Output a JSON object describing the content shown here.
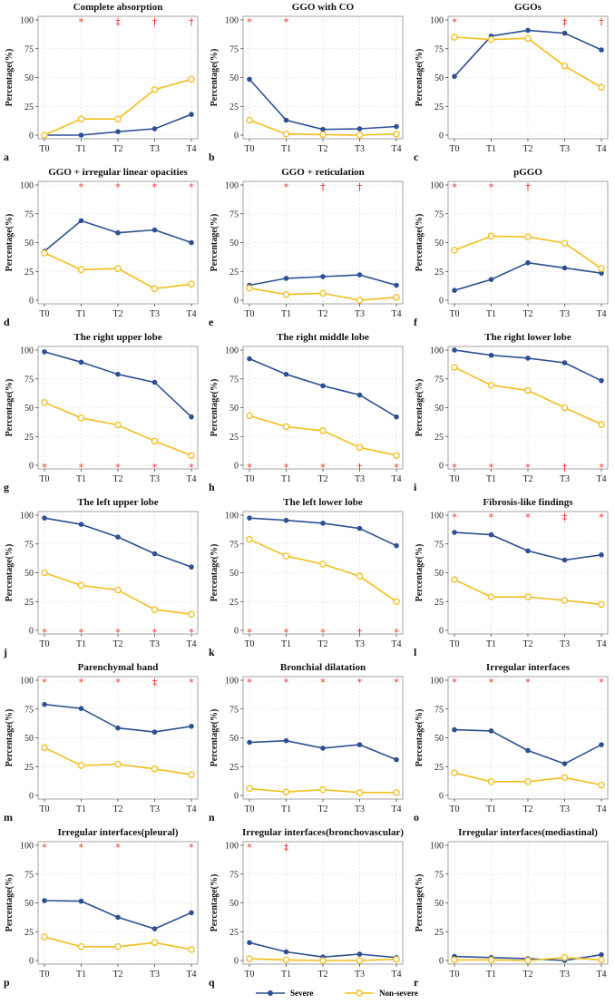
{
  "chart_data": [
    {
      "type": "line",
      "letter": "a",
      "title": "Complete absorption",
      "ylabel": "Percentage(%)",
      "ylim": [
        0,
        100
      ],
      "yticks": [
        0,
        25,
        50,
        75,
        100
      ],
      "categories": [
        "T0",
        "T1",
        "T2",
        "T3",
        "T4"
      ],
      "series": [
        {
          "name": "Severe",
          "values": [
            0,
            0,
            3,
            5.5,
            18
          ]
        },
        {
          "name": "Non-severe",
          "values": [
            0,
            14,
            14,
            39.5,
            48.5
          ]
        }
      ],
      "annotations": [
        {
          "x": "T1",
          "symbol": "*"
        },
        {
          "x": "T2",
          "symbol": "‡"
        },
        {
          "x": "T3",
          "symbol": "†"
        },
        {
          "x": "T4",
          "symbol": "†"
        }
      ],
      "annotation_position": "top"
    },
    {
      "type": "line",
      "letter": "b",
      "title": "GGO with CO",
      "ylabel": "Percentage(%)",
      "ylim": [
        0,
        100
      ],
      "yticks": [
        0,
        25,
        50,
        75,
        100
      ],
      "categories": [
        "T0",
        "T1",
        "T2",
        "T3",
        "T4"
      ],
      "series": [
        {
          "name": "Severe",
          "values": [
            48.5,
            13,
            5,
            5.5,
            7.5
          ]
        },
        {
          "name": "Non-severe",
          "values": [
            13,
            1,
            0.5,
            0,
            1
          ]
        }
      ],
      "annotations": [
        {
          "x": "T0",
          "symbol": "*"
        },
        {
          "x": "T1",
          "symbol": "*"
        }
      ],
      "annotation_position": "top"
    },
    {
      "type": "line",
      "letter": "c",
      "title": "GGOs",
      "ylabel": "Percentage(%)",
      "ylim": [
        0,
        100
      ],
      "yticks": [
        0,
        25,
        50,
        75,
        100
      ],
      "categories": [
        "T0",
        "T1",
        "T2",
        "T3",
        "T4"
      ],
      "series": [
        {
          "name": "Severe",
          "values": [
            51,
            86,
            91,
            88.5,
            74
          ]
        },
        {
          "name": "Non-severe",
          "values": [
            85,
            83,
            84,
            60,
            41.5
          ]
        }
      ],
      "annotations": [
        {
          "x": "T0",
          "symbol": "*"
        },
        {
          "x": "T3",
          "symbol": "‡"
        },
        {
          "x": "T4",
          "symbol": "†"
        }
      ],
      "annotation_position": "top"
    },
    {
      "type": "line",
      "letter": "d",
      "title": "GGO + irregular linear opacities",
      "ylabel": "Percentage(%)",
      "ylim": [
        0,
        100
      ],
      "yticks": [
        0,
        25,
        50,
        75,
        100
      ],
      "categories": [
        "T0",
        "T1",
        "T2",
        "T3",
        "T4"
      ],
      "series": [
        {
          "name": "Severe",
          "values": [
            42.5,
            69,
            58.5,
            61,
            50
          ]
        },
        {
          "name": "Non-severe",
          "values": [
            41,
            26.5,
            27.5,
            10,
            14
          ]
        }
      ],
      "annotations": [
        {
          "x": "T1",
          "symbol": "*"
        },
        {
          "x": "T2",
          "symbol": "*"
        },
        {
          "x": "T3",
          "symbol": "*"
        },
        {
          "x": "T4",
          "symbol": "*"
        }
      ],
      "annotation_position": "top"
    },
    {
      "type": "line",
      "letter": "e",
      "title": "GGO + reticulation",
      "ylabel": "Percentage(%)",
      "ylim": [
        0,
        100
      ],
      "yticks": [
        0,
        25,
        50,
        75,
        100
      ],
      "categories": [
        "T0",
        "T1",
        "T2",
        "T3",
        "T4"
      ],
      "series": [
        {
          "name": "Severe",
          "values": [
            13,
            19,
            20.5,
            22,
            13
          ]
        },
        {
          "name": "Non-severe",
          "values": [
            10.5,
            5,
            6,
            0,
            2.5
          ]
        }
      ],
      "annotations": [
        {
          "x": "T1",
          "symbol": "*"
        },
        {
          "x": "T2",
          "symbol": "†"
        },
        {
          "x": "T3",
          "symbol": "†"
        }
      ],
      "annotation_position": "top"
    },
    {
      "type": "line",
      "letter": "f",
      "title": "pGGO",
      "ylabel": "Percentage(%)",
      "ylim": [
        0,
        100
      ],
      "yticks": [
        0,
        25,
        50,
        75,
        100
      ],
      "categories": [
        "T0",
        "T1",
        "T2",
        "T3",
        "T4"
      ],
      "series": [
        {
          "name": "Severe",
          "values": [
            8.5,
            18,
            32.5,
            28,
            23.5
          ]
        },
        {
          "name": "Non-severe",
          "values": [
            43.5,
            55.5,
            55,
            49.5,
            27.5
          ]
        }
      ],
      "annotations": [
        {
          "x": "T0",
          "symbol": "*"
        },
        {
          "x": "T1",
          "symbol": "*"
        },
        {
          "x": "T2",
          "symbol": "†"
        }
      ],
      "annotation_position": "top"
    },
    {
      "type": "line",
      "letter": "g",
      "title": "The right upper lobe",
      "ylabel": "Percentage(%)",
      "ylim": [
        0,
        100
      ],
      "yticks": [
        0,
        25,
        50,
        75,
        100
      ],
      "categories": [
        "T0",
        "T1",
        "T2",
        "T3",
        "T4"
      ],
      "series": [
        {
          "name": "Severe",
          "values": [
            98.5,
            89.5,
            79,
            72,
            42
          ]
        },
        {
          "name": "Non-severe",
          "values": [
            54.5,
            41,
            35,
            21,
            8.5
          ]
        }
      ],
      "annotations": [
        {
          "x": "T0",
          "symbol": "*"
        },
        {
          "x": "T1",
          "symbol": "*"
        },
        {
          "x": "T2",
          "symbol": "*"
        },
        {
          "x": "T3",
          "symbol": "*"
        },
        {
          "x": "T4",
          "symbol": "*"
        }
      ],
      "annotation_position": "bottom"
    },
    {
      "type": "line",
      "letter": "h",
      "title": "The right middle lobe",
      "ylabel": "Percentage(%)",
      "ylim": [
        0,
        100
      ],
      "yticks": [
        0,
        25,
        50,
        75,
        100
      ],
      "categories": [
        "T0",
        "T1",
        "T2",
        "T3",
        "T4"
      ],
      "series": [
        {
          "name": "Severe",
          "values": [
            92.5,
            79,
            69,
            61,
            42
          ]
        },
        {
          "name": "Non-severe",
          "values": [
            43,
            33.5,
            30,
            15.5,
            8.5
          ]
        }
      ],
      "annotations": [
        {
          "x": "T0",
          "symbol": "*"
        },
        {
          "x": "T1",
          "symbol": "*"
        },
        {
          "x": "T2",
          "symbol": "*"
        },
        {
          "x": "T3",
          "symbol": "†"
        },
        {
          "x": "T4",
          "symbol": "*"
        }
      ],
      "annotation_position": "bottom"
    },
    {
      "type": "line",
      "letter": "i",
      "title": "The right lower lobe",
      "ylabel": "Percentage(%)",
      "ylim": [
        0,
        100
      ],
      "yticks": [
        0,
        25,
        50,
        75,
        100
      ],
      "categories": [
        "T0",
        "T1",
        "T2",
        "T3",
        "T4"
      ],
      "series": [
        {
          "name": "Severe",
          "values": [
            100,
            95.5,
            93,
            89,
            73.5
          ]
        },
        {
          "name": "Non-severe",
          "values": [
            85,
            69.5,
            65,
            50,
            35.5
          ]
        }
      ],
      "annotations": [
        {
          "x": "T0",
          "symbol": "*"
        },
        {
          "x": "T1",
          "symbol": "*"
        },
        {
          "x": "T2",
          "symbol": "*"
        },
        {
          "x": "T3",
          "symbol": "†"
        },
        {
          "x": "T4",
          "symbol": "*"
        }
      ],
      "annotation_position": "bottom"
    },
    {
      "type": "line",
      "letter": "j",
      "title": "The left upper lobe",
      "ylabel": "Percentage(%)",
      "ylim": [
        0,
        100
      ],
      "yticks": [
        0,
        25,
        50,
        75,
        100
      ],
      "categories": [
        "T0",
        "T1",
        "T2",
        "T3",
        "T4"
      ],
      "series": [
        {
          "name": "Severe",
          "values": [
            97.5,
            92,
            81,
            66.5,
            55
          ]
        },
        {
          "name": "Non-severe",
          "values": [
            50,
            39,
            35,
            18,
            14
          ]
        }
      ],
      "annotations": [
        {
          "x": "T0",
          "symbol": "*"
        },
        {
          "x": "T1",
          "symbol": "*"
        },
        {
          "x": "T2",
          "symbol": "*"
        },
        {
          "x": "T3",
          "symbol": "*"
        },
        {
          "x": "T4",
          "symbol": "*"
        }
      ],
      "annotation_position": "bottom"
    },
    {
      "type": "line",
      "letter": "k",
      "title": "The left lower lobe",
      "ylabel": "Percentage(%)",
      "ylim": [
        0,
        100
      ],
      "yticks": [
        0,
        25,
        50,
        75,
        100
      ],
      "categories": [
        "T0",
        "T1",
        "T2",
        "T3",
        "T4"
      ],
      "series": [
        {
          "name": "Severe",
          "values": [
            97.5,
            95.5,
            93,
            88.5,
            73.5
          ]
        },
        {
          "name": "Non-severe",
          "values": [
            79,
            64.5,
            57.5,
            47,
            25
          ]
        }
      ],
      "annotations": [
        {
          "x": "T0",
          "symbol": "*"
        },
        {
          "x": "T1",
          "symbol": "*"
        },
        {
          "x": "T2",
          "symbol": "*"
        },
        {
          "x": "T3",
          "symbol": "†"
        },
        {
          "x": "T4",
          "symbol": "*"
        }
      ],
      "annotation_position": "bottom"
    },
    {
      "type": "line",
      "letter": "l",
      "title": "Fibrosis-like findings",
      "ylabel": "Percentage(%)",
      "ylim": [
        0,
        100
      ],
      "yticks": [
        0,
        25,
        50,
        75,
        100
      ],
      "categories": [
        "T0",
        "T1",
        "T2",
        "T3",
        "T4"
      ],
      "series": [
        {
          "name": "Severe",
          "values": [
            85,
            83,
            69,
            61,
            65.5
          ]
        },
        {
          "name": "Non-severe",
          "values": [
            44,
            29,
            29,
            26,
            22.5
          ]
        }
      ],
      "annotations": [
        {
          "x": "T0",
          "symbol": "*"
        },
        {
          "x": "T1",
          "symbol": "*"
        },
        {
          "x": "T2",
          "symbol": "*"
        },
        {
          "x": "T3",
          "symbol": "‡"
        },
        {
          "x": "T4",
          "symbol": "*"
        }
      ],
      "annotation_position": "top"
    },
    {
      "type": "line",
      "letter": "m",
      "title": "Parenchymal band",
      "ylabel": "Percentage(%)",
      "ylim": [
        0,
        100
      ],
      "yticks": [
        0,
        25,
        50,
        75,
        100
      ],
      "categories": [
        "T0",
        "T1",
        "T2",
        "T3",
        "T4"
      ],
      "series": [
        {
          "name": "Severe",
          "values": [
            79,
            75.5,
            58.5,
            55,
            60
          ]
        },
        {
          "name": "Non-severe",
          "values": [
            41.5,
            26,
            27,
            23,
            18
          ]
        }
      ],
      "annotations": [
        {
          "x": "T0",
          "symbol": "*"
        },
        {
          "x": "T1",
          "symbol": "*"
        },
        {
          "x": "T2",
          "symbol": "*"
        },
        {
          "x": "T3",
          "symbol": "‡"
        },
        {
          "x": "T4",
          "symbol": "*"
        }
      ],
      "annotation_position": "top"
    },
    {
      "type": "line",
      "letter": "n",
      "title": "Bronchial dilatation",
      "ylabel": "Percentage(%)",
      "ylim": [
        0,
        100
      ],
      "yticks": [
        0,
        25,
        50,
        75,
        100
      ],
      "categories": [
        "T0",
        "T1",
        "T2",
        "T3",
        "T4"
      ],
      "series": [
        {
          "name": "Severe",
          "values": [
            46,
            47.5,
            41,
            44,
            31
          ]
        },
        {
          "name": "Non-severe",
          "values": [
            6,
            3,
            5,
            2.5,
            2.5
          ]
        }
      ],
      "annotations": [
        {
          "x": "T0",
          "symbol": "*"
        },
        {
          "x": "T1",
          "symbol": "*"
        },
        {
          "x": "T2",
          "symbol": "*"
        },
        {
          "x": "T3",
          "symbol": "*"
        },
        {
          "x": "T4",
          "symbol": "*"
        }
      ],
      "annotation_position": "top"
    },
    {
      "type": "line",
      "letter": "o",
      "title": "Irregular interfaces",
      "ylabel": "Percentage(%)",
      "ylim": [
        0,
        100
      ],
      "yticks": [
        0,
        25,
        50,
        75,
        100
      ],
      "categories": [
        "T0",
        "T1",
        "T2",
        "T3",
        "T4"
      ],
      "series": [
        {
          "name": "Severe",
          "values": [
            57,
            56,
            39,
            27.5,
            44
          ]
        },
        {
          "name": "Non-severe",
          "values": [
            19.5,
            12,
            12,
            15.5,
            9
          ]
        }
      ],
      "annotations": [
        {
          "x": "T0",
          "symbol": "*"
        },
        {
          "x": "T1",
          "symbol": "*"
        },
        {
          "x": "T2",
          "symbol": "*"
        },
        {
          "x": "T4",
          "symbol": "*"
        }
      ],
      "annotation_position": "top"
    },
    {
      "type": "line",
      "letter": "p",
      "title": "Irregular interfaces(pleural)",
      "ylabel": "Percentage(%)",
      "ylim": [
        0,
        100
      ],
      "yticks": [
        0,
        25,
        50,
        75,
        100
      ],
      "categories": [
        "T0",
        "T1",
        "T2",
        "T3",
        "T4"
      ],
      "series": [
        {
          "name": "Severe",
          "values": [
            52,
            51.5,
            37.5,
            27.5,
            41.5
          ]
        },
        {
          "name": "Non-severe",
          "values": [
            20.5,
            12,
            12,
            15.5,
            9.5
          ]
        }
      ],
      "annotations": [
        {
          "x": "T0",
          "symbol": "*"
        },
        {
          "x": "T1",
          "symbol": "*"
        },
        {
          "x": "T2",
          "symbol": "*"
        },
        {
          "x": "T4",
          "symbol": "*"
        }
      ],
      "annotation_position": "top"
    },
    {
      "type": "line",
      "letter": "q",
      "title": "Irregular interfaces(bronchovascular)",
      "ylabel": "Percentage(%)",
      "ylim": [
        0,
        100
      ],
      "yticks": [
        0,
        25,
        50,
        75,
        100
      ],
      "categories": [
        "T0",
        "T1",
        "T2",
        "T3",
        "T4"
      ],
      "series": [
        {
          "name": "Severe",
          "values": [
            15.5,
            7.5,
            3,
            5.5,
            2.5
          ]
        },
        {
          "name": "Non-severe",
          "values": [
            1.5,
            0.5,
            0,
            0,
            1
          ]
        }
      ],
      "annotations": [
        {
          "x": "T0",
          "symbol": "*"
        },
        {
          "x": "T1",
          "symbol": "‡"
        }
      ],
      "annotation_position": "top"
    },
    {
      "type": "line",
      "letter": "r",
      "title": "Irregular interfaces(mediastinal)",
      "ylabel": "Percentage(%)",
      "ylim": [
        0,
        100
      ],
      "yticks": [
        0,
        25,
        50,
        75,
        100
      ],
      "categories": [
        "T0",
        "T1",
        "T2",
        "T3",
        "T4"
      ],
      "series": [
        {
          "name": "Severe",
          "values": [
            3.5,
            2.5,
            1.5,
            0,
            5
          ]
        },
        {
          "name": "Non-severe",
          "values": [
            0.5,
            0.5,
            0,
            2.5,
            0.5
          ]
        }
      ],
      "annotations": [],
      "annotation_position": "top"
    }
  ],
  "legend": {
    "location": "bottom-center",
    "items": [
      {
        "label": "Severe",
        "color": "#2d4f93",
        "marker": "filled-circle"
      },
      {
        "label": "Non-severe",
        "color": "#f3bd1a",
        "marker": "open-circle"
      }
    ]
  },
  "colors": {
    "severe": "#2d4f93",
    "non_severe": "#f3bd1a",
    "annotation": "#e8332f",
    "grid": "#d9d9d9",
    "axis": "#8c8c8c"
  }
}
